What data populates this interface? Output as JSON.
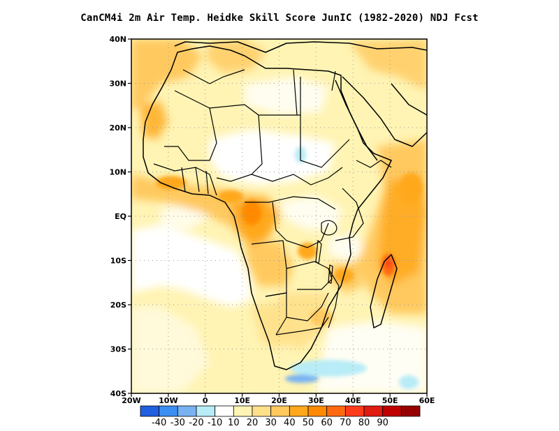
{
  "title": "CanCM4i  2m Air Temp. Heidke Skill Score JunIC (1982-2020) NDJ Fcst",
  "map": {
    "lon_range": [
      -20,
      60
    ],
    "lat_range": [
      -40,
      40
    ],
    "lat_ticks": [
      {
        "value": 40,
        "label": "40N"
      },
      {
        "value": 30,
        "label": "30N"
      },
      {
        "value": 20,
        "label": "20N"
      },
      {
        "value": 10,
        "label": "10N"
      },
      {
        "value": 0,
        "label": "EQ"
      },
      {
        "value": -10,
        "label": "10S"
      },
      {
        "value": -20,
        "label": "20S"
      },
      {
        "value": -30,
        "label": "30S"
      },
      {
        "value": -40,
        "label": "40S"
      }
    ],
    "lon_ticks": [
      {
        "value": -20,
        "label": "20W"
      },
      {
        "value": -10,
        "label": "10W"
      },
      {
        "value": 0,
        "label": "0"
      },
      {
        "value": 10,
        "label": "10E"
      },
      {
        "value": 20,
        "label": "20E"
      },
      {
        "value": 30,
        "label": "30E"
      },
      {
        "value": 40,
        "label": "40E"
      },
      {
        "value": 50,
        "label": "50E"
      },
      {
        "value": 60,
        "label": "60E"
      }
    ],
    "gridlines": "dotted"
  },
  "colorbar": {
    "colors": [
      "#1f5fe0",
      "#3c8ef0",
      "#78b2f2",
      "#b8ecf6",
      "#ffffff",
      "#fff4b4",
      "#ffe08a",
      "#ffc95e",
      "#ffa81c",
      "#ff8a00",
      "#ff6a10",
      "#ff3c1a",
      "#e01b10",
      "#c00000",
      "#960000"
    ],
    "labels": [
      "-40",
      "-30",
      "-20",
      "-10",
      "10",
      "20",
      "30",
      "40",
      "50",
      "60",
      "70",
      "80",
      "90"
    ]
  },
  "skill_regions": [
    {
      "region": "Gulf of Guinea / West African coast",
      "level": 50
    },
    {
      "region": "Gabon / Congo coast",
      "level": 60
    },
    {
      "region": "Western Indian Ocean",
      "level": 50
    },
    {
      "region": "Madagascar north",
      "level": 70
    },
    {
      "region": "Sahara",
      "level": 20
    },
    {
      "region": "Southern Africa",
      "level": 30
    },
    {
      "region": "South Atlantic",
      "level": 10
    },
    {
      "region": "Sudan / Chad",
      "level": 10
    },
    {
      "region": "South of Cape",
      "level": -30
    }
  ]
}
